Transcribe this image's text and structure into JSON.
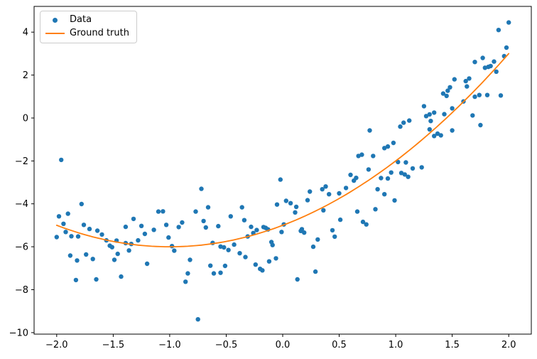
{
  "chart_data": {
    "type": "scatter",
    "title": "",
    "xlabel": "",
    "ylabel": "",
    "xlim": [
      -2.2,
      2.2
    ],
    "ylim": [
      -10.07,
      5.2
    ],
    "grid": false,
    "x_ticks": [
      -2.0,
      -1.5,
      -1.0,
      -0.5,
      0.0,
      0.5,
      1.0,
      1.5,
      2.0
    ],
    "x_tick_labels": [
      "−2.0",
      "−1.5",
      "−1.0",
      "−0.5",
      "0.0",
      "0.5",
      "1.0",
      "1.5",
      "2.0"
    ],
    "y_ticks": [
      4,
      2,
      0,
      -2,
      -4,
      -6,
      -8,
      -10
    ],
    "y_tick_labels": [
      "4",
      "2",
      "0",
      "−2",
      "−4",
      "−6",
      "−8",
      "−10"
    ],
    "legend": {
      "position": "upper left",
      "entries": [
        {
          "label": "Data",
          "handle": "marker",
          "color": "#1f77b4"
        },
        {
          "label": "Ground truth",
          "handle": "line",
          "color": "#ff7f0e"
        }
      ]
    },
    "series": [
      {
        "name": "Data",
        "type": "scatter",
        "color": "#1f77b4",
        "marker": "point",
        "points": [
          [
            -2.0,
            -5.55
          ],
          [
            -1.98,
            -4.58
          ],
          [
            -1.96,
            -1.95
          ],
          [
            -1.94,
            -4.93
          ],
          [
            -1.92,
            -5.31
          ],
          [
            -1.9,
            -4.46
          ],
          [
            -1.88,
            -6.41
          ],
          [
            -1.87,
            -5.51
          ],
          [
            -1.83,
            -7.55
          ],
          [
            -1.82,
            -6.64
          ],
          [
            -1.81,
            -5.52
          ],
          [
            -1.78,
            -4.01
          ],
          [
            -1.76,
            -4.98
          ],
          [
            -1.74,
            -6.36
          ],
          [
            -1.71,
            -5.17
          ],
          [
            -1.68,
            -6.57
          ],
          [
            -1.65,
            -7.52
          ],
          [
            -1.64,
            -5.25
          ],
          [
            -1.6,
            -5.43
          ],
          [
            -1.56,
            -5.7
          ],
          [
            -1.53,
            -5.95
          ],
          [
            -1.51,
            -6.02
          ],
          [
            -1.49,
            -6.61
          ],
          [
            -1.47,
            -5.71
          ],
          [
            -1.46,
            -6.33
          ],
          [
            -1.43,
            -7.39
          ],
          [
            -1.39,
            -5.07
          ],
          [
            -1.39,
            -5.83
          ],
          [
            -1.36,
            -6.17
          ],
          [
            -1.34,
            -5.87
          ],
          [
            -1.32,
            -4.7
          ],
          [
            -1.28,
            -5.7
          ],
          [
            -1.25,
            -5.03
          ],
          [
            -1.22,
            -5.4
          ],
          [
            -1.2,
            -6.79
          ],
          [
            -1.14,
            -5.21
          ],
          [
            -1.1,
            -4.36
          ],
          [
            -1.06,
            -4.35
          ],
          [
            -1.03,
            -4.98
          ],
          [
            -1.01,
            -5.57
          ],
          [
            -0.98,
            -5.97
          ],
          [
            -0.96,
            -6.18
          ],
          [
            -0.92,
            -5.08
          ],
          [
            -0.89,
            -4.87
          ],
          [
            -0.86,
            -7.63
          ],
          [
            -0.84,
            -7.24
          ],
          [
            -0.82,
            -6.61
          ],
          [
            -0.77,
            -4.36
          ],
          [
            -0.75,
            -9.38
          ],
          [
            -0.72,
            -3.3
          ],
          [
            -0.7,
            -4.8
          ],
          [
            -0.68,
            -5.1
          ],
          [
            -0.66,
            -4.16
          ],
          [
            -0.64,
            -6.88
          ],
          [
            -0.62,
            -5.82
          ],
          [
            -0.61,
            -7.24
          ],
          [
            -0.57,
            -5.04
          ],
          [
            -0.55,
            -5.99
          ],
          [
            -0.55,
            -7.21
          ],
          [
            -0.52,
            -6.03
          ],
          [
            -0.51,
            -6.89
          ],
          [
            -0.48,
            -6.15
          ],
          [
            -0.46,
            -4.58
          ],
          [
            -0.43,
            -5.9
          ],
          [
            -0.38,
            -6.3
          ],
          [
            -0.36,
            -4.16
          ],
          [
            -0.34,
            -4.76
          ],
          [
            -0.33,
            -6.48
          ],
          [
            -0.31,
            -5.52
          ],
          [
            -0.28,
            -5.07
          ],
          [
            -0.26,
            -5.36
          ],
          [
            -0.24,
            -6.83
          ],
          [
            -0.23,
            -5.22
          ],
          [
            -0.2,
            -7.03
          ],
          [
            -0.18,
            -7.1
          ],
          [
            -0.17,
            -5.08
          ],
          [
            -0.15,
            -5.12
          ],
          [
            -0.13,
            -5.19
          ],
          [
            -0.12,
            -6.68
          ],
          [
            -0.1,
            -5.78
          ],
          [
            -0.09,
            -5.92
          ],
          [
            -0.06,
            -6.54
          ],
          [
            -0.05,
            -4.03
          ],
          [
            -0.02,
            -2.87
          ],
          [
            -0.01,
            -5.31
          ],
          [
            0.01,
            -4.96
          ],
          [
            0.03,
            -3.86
          ],
          [
            0.07,
            -3.97
          ],
          [
            0.11,
            -4.4
          ],
          [
            0.12,
            -4.14
          ],
          [
            0.13,
            -7.52
          ],
          [
            0.16,
            -5.26
          ],
          [
            0.17,
            -5.18
          ],
          [
            0.19,
            -5.34
          ],
          [
            0.22,
            -3.83
          ],
          [
            0.24,
            -3.43
          ],
          [
            0.27,
            -6.0
          ],
          [
            0.29,
            -7.16
          ],
          [
            0.31,
            -5.66
          ],
          [
            0.35,
            -3.32
          ],
          [
            0.36,
            -4.3
          ],
          [
            0.38,
            -3.19
          ],
          [
            0.41,
            -3.55
          ],
          [
            0.44,
            -5.23
          ],
          [
            0.46,
            -5.53
          ],
          [
            0.5,
            -3.51
          ],
          [
            0.51,
            -4.74
          ],
          [
            0.56,
            -3.26
          ],
          [
            0.6,
            -2.65
          ],
          [
            0.63,
            -2.92
          ],
          [
            0.65,
            -2.79
          ],
          [
            0.66,
            -4.36
          ],
          [
            0.67,
            -1.77
          ],
          [
            0.7,
            -1.71
          ],
          [
            0.71,
            -4.84
          ],
          [
            0.74,
            -4.96
          ],
          [
            0.76,
            -2.4
          ],
          [
            0.77,
            -0.58
          ],
          [
            0.8,
            -1.77
          ],
          [
            0.82,
            -4.25
          ],
          [
            0.84,
            -3.32
          ],
          [
            0.87,
            -2.8
          ],
          [
            0.9,
            -1.4
          ],
          [
            0.9,
            -3.55
          ],
          [
            0.93,
            -1.33
          ],
          [
            0.93,
            -2.82
          ],
          [
            0.96,
            -2.54
          ],
          [
            0.98,
            -1.16
          ],
          [
            0.99,
            -3.84
          ],
          [
            1.02,
            -2.05
          ],
          [
            1.04,
            -0.4
          ],
          [
            1.05,
            -2.56
          ],
          [
            1.07,
            -0.22
          ],
          [
            1.08,
            -2.63
          ],
          [
            1.09,
            -2.07
          ],
          [
            1.11,
            -2.74
          ],
          [
            1.12,
            -0.12
          ],
          [
            1.15,
            -2.35
          ],
          [
            1.23,
            -2.3
          ],
          [
            1.25,
            0.55
          ],
          [
            1.27,
            0.09
          ],
          [
            1.3,
            0.17
          ],
          [
            1.3,
            -0.53
          ],
          [
            1.31,
            -0.14
          ],
          [
            1.34,
            -0.84
          ],
          [
            1.34,
            0.25
          ],
          [
            1.37,
            -0.73
          ],
          [
            1.4,
            -0.81
          ],
          [
            1.42,
            1.14
          ],
          [
            1.43,
            0.18
          ],
          [
            1.45,
            1.03
          ],
          [
            1.46,
            1.27
          ],
          [
            1.48,
            1.43
          ],
          [
            1.5,
            -0.58
          ],
          [
            1.5,
            0.45
          ],
          [
            1.52,
            1.8
          ],
          [
            1.6,
            0.77
          ],
          [
            1.62,
            1.72
          ],
          [
            1.63,
            1.47
          ],
          [
            1.65,
            1.84
          ],
          [
            1.68,
            0.12
          ],
          [
            1.7,
            0.99
          ],
          [
            1.7,
            2.61
          ],
          [
            1.74,
            1.07
          ],
          [
            1.75,
            -0.33
          ],
          [
            1.77,
            2.8
          ],
          [
            1.79,
            2.34
          ],
          [
            1.81,
            1.07
          ],
          [
            1.82,
            2.38
          ],
          [
            1.84,
            2.42
          ],
          [
            1.87,
            2.63
          ],
          [
            1.89,
            2.16
          ],
          [
            1.91,
            4.1
          ],
          [
            1.93,
            1.05
          ],
          [
            1.96,
            2.88
          ],
          [
            1.98,
            3.28
          ],
          [
            2.0,
            4.45
          ]
        ]
      },
      {
        "name": "Ground truth",
        "type": "line",
        "color": "#ff7f0e",
        "formula": "y = x^2 + 2x - 5",
        "coefficients": [
          -5,
          2,
          1
        ],
        "x_range": [
          -2,
          2
        ]
      }
    ]
  },
  "colors": {
    "data_marker": "#1f77b4",
    "ground_truth_line": "#ff7f0e",
    "axis": "#000000",
    "legend_border": "#cccccc",
    "background": "#ffffff"
  }
}
